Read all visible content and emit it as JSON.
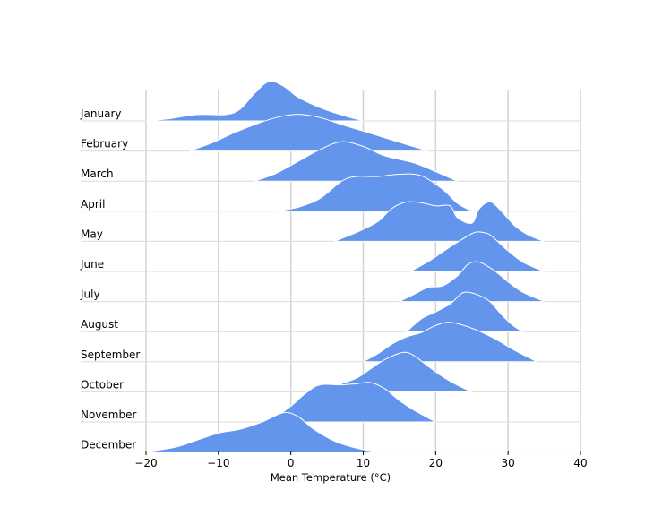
{
  "chart_data": {
    "type": "ridgeline",
    "xlabel": "Mean Temperature (°C)",
    "xlim": [
      -20,
      40
    ],
    "xticks": [
      -20,
      -10,
      0,
      10,
      20,
      30,
      40
    ],
    "xtick_labels": [
      "−20",
      "−10",
      "0",
      "10",
      "20",
      "30",
      "40"
    ],
    "grid": true,
    "fill_color": "#6495ED",
    "series": [
      {
        "name": "January",
        "points": [
          [
            -20,
            0
          ],
          [
            -17,
            0.05
          ],
          [
            -13,
            0.16
          ],
          [
            -9,
            0.16
          ],
          [
            -7,
            0.3
          ],
          [
            -5,
            0.7
          ],
          [
            -3,
            1.0
          ],
          [
            -1,
            0.88
          ],
          [
            1,
            0.6
          ],
          [
            4,
            0.34
          ],
          [
            7,
            0.15
          ],
          [
            10,
            0
          ]
        ]
      },
      {
        "name": "February",
        "points": [
          [
            -14,
            0
          ],
          [
            -11,
            0.2
          ],
          [
            -8,
            0.45
          ],
          [
            -5,
            0.67
          ],
          [
            -2,
            0.85
          ],
          [
            1,
            0.93
          ],
          [
            4,
            0.85
          ],
          [
            7,
            0.67
          ],
          [
            11,
            0.45
          ],
          [
            15,
            0.22
          ],
          [
            19,
            0
          ]
        ]
      },
      {
        "name": "March",
        "points": [
          [
            -5,
            0
          ],
          [
            -2,
            0.2
          ],
          [
            1,
            0.5
          ],
          [
            4,
            0.8
          ],
          [
            7,
            1.0
          ],
          [
            10,
            0.88
          ],
          [
            13,
            0.64
          ],
          [
            17,
            0.46
          ],
          [
            20,
            0.24
          ],
          [
            23,
            0
          ]
        ]
      },
      {
        "name": "April",
        "points": [
          [
            -2,
            0
          ],
          [
            1,
            0.1
          ],
          [
            4,
            0.32
          ],
          [
            7,
            0.76
          ],
          [
            9,
            0.88
          ],
          [
            12,
            0.88
          ],
          [
            15,
            0.94
          ],
          [
            18,
            0.9
          ],
          [
            21,
            0.55
          ],
          [
            23,
            0.2
          ],
          [
            25,
            0
          ]
        ]
      },
      {
        "name": "May",
        "points": [
          [
            6,
            0
          ],
          [
            9,
            0.22
          ],
          [
            12,
            0.5
          ],
          [
            14,
            0.84
          ],
          [
            16,
            1.0
          ],
          [
            18,
            0.98
          ],
          [
            20,
            0.9
          ],
          [
            22,
            0.9
          ],
          [
            23,
            0.6
          ],
          [
            25,
            0.46
          ],
          [
            26,
            0.82
          ],
          [
            27.5,
            1.0
          ],
          [
            29,
            0.78
          ],
          [
            31,
            0.38
          ],
          [
            33,
            0.14
          ],
          [
            35,
            0
          ]
        ]
      },
      {
        "name": "June",
        "points": [
          [
            16.5,
            0
          ],
          [
            19,
            0.25
          ],
          [
            21,
            0.5
          ],
          [
            23,
            0.74
          ],
          [
            25,
            0.96
          ],
          [
            26,
            1.0
          ],
          [
            27.5,
            0.93
          ],
          [
            29.5,
            0.6
          ],
          [
            32,
            0.24
          ],
          [
            35,
            0
          ]
        ]
      },
      {
        "name": "July",
        "points": [
          [
            15,
            0
          ],
          [
            17,
            0.18
          ],
          [
            19,
            0.36
          ],
          [
            21,
            0.4
          ],
          [
            23,
            0.65
          ],
          [
            24.5,
            0.95
          ],
          [
            26,
            1.0
          ],
          [
            28,
            0.8
          ],
          [
            30,
            0.5
          ],
          [
            32,
            0.24
          ],
          [
            35,
            0
          ]
        ]
      },
      {
        "name": "August",
        "points": [
          [
            16,
            0
          ],
          [
            18,
            0.32
          ],
          [
            20,
            0.5
          ],
          [
            22,
            0.7
          ],
          [
            23.5,
            0.96
          ],
          [
            24.5,
            1.0
          ],
          [
            26,
            0.92
          ],
          [
            27.5,
            0.76
          ],
          [
            29,
            0.45
          ],
          [
            30.5,
            0.18
          ],
          [
            32,
            0
          ]
        ]
      },
      {
        "name": "September",
        "points": [
          [
            10,
            0
          ],
          [
            12,
            0.2
          ],
          [
            14,
            0.45
          ],
          [
            16,
            0.63
          ],
          [
            18,
            0.74
          ],
          [
            20,
            0.92
          ],
          [
            22,
            1.0
          ],
          [
            25,
            0.85
          ],
          [
            28,
            0.6
          ],
          [
            31,
            0.28
          ],
          [
            34,
            0
          ]
        ]
      },
      {
        "name": "October",
        "points": [
          [
            3,
            0
          ],
          [
            6,
            0.15
          ],
          [
            9,
            0.34
          ],
          [
            11,
            0.58
          ],
          [
            13,
            0.82
          ],
          [
            15.5,
            1.0
          ],
          [
            17,
            0.92
          ],
          [
            19,
            0.64
          ],
          [
            21,
            0.38
          ],
          [
            23,
            0.17
          ],
          [
            25,
            0
          ]
        ]
      },
      {
        "name": "November",
        "points": [
          [
            -3,
            0
          ],
          [
            0,
            0.4
          ],
          [
            2,
            0.72
          ],
          [
            4,
            0.94
          ],
          [
            7,
            0.94
          ],
          [
            9,
            0.97
          ],
          [
            11,
            1.0
          ],
          [
            13,
            0.84
          ],
          [
            15,
            0.54
          ],
          [
            17,
            0.3
          ],
          [
            20,
            0
          ]
        ]
      },
      {
        "name": "December",
        "points": [
          [
            -20,
            0
          ],
          [
            -16,
            0.12
          ],
          [
            -13,
            0.3
          ],
          [
            -10,
            0.48
          ],
          [
            -7,
            0.58
          ],
          [
            -4,
            0.76
          ],
          [
            -1,
            1.0
          ],
          [
            1,
            0.9
          ],
          [
            3,
            0.6
          ],
          [
            6,
            0.28
          ],
          [
            9,
            0.1
          ],
          [
            12,
            0
          ]
        ]
      }
    ]
  }
}
